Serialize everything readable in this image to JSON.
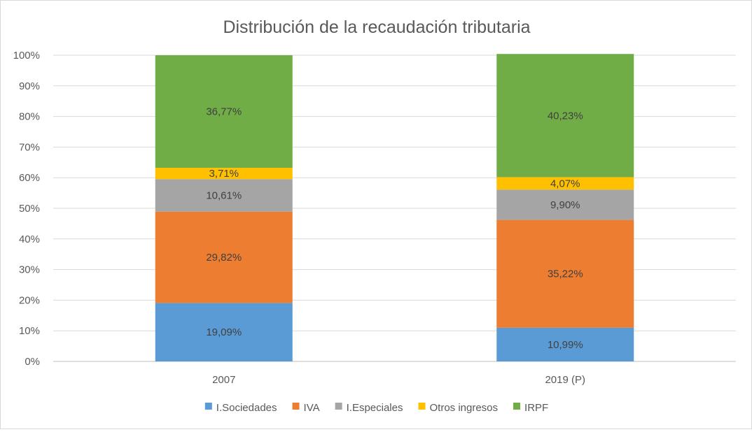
{
  "chart_data": {
    "type": "bar",
    "stacked": true,
    "title": "Distribución de la recaudación tributaria",
    "xlabel": "",
    "ylabel": "",
    "categories": [
      "2007",
      "2019 (P)"
    ],
    "ylim": [
      0,
      100
    ],
    "yticks": [
      "0%",
      "10%",
      "20%",
      "30%",
      "40%",
      "50%",
      "60%",
      "70%",
      "80%",
      "90%",
      "100%"
    ],
    "grid": true,
    "legend_position": "bottom",
    "series": [
      {
        "name": "I.Sociedades",
        "color": "#5b9bd5",
        "values": [
          19.09,
          10.99
        ],
        "labels": [
          "19,09%",
          "10,99%"
        ]
      },
      {
        "name": "IVA",
        "color": "#ed7d31",
        "values": [
          29.82,
          35.22
        ],
        "labels": [
          "29,82%",
          "35,22%"
        ]
      },
      {
        "name": "I.Especiales",
        "color": "#a5a5a5",
        "values": [
          10.61,
          9.9
        ],
        "labels": [
          "10,61%",
          "9,90%"
        ]
      },
      {
        "name": "Otros ingresos",
        "color": "#ffc000",
        "values": [
          3.71,
          4.07
        ],
        "labels": [
          "3,71%",
          "4,07%"
        ]
      },
      {
        "name": "IRPF",
        "color": "#70ad47",
        "values": [
          36.77,
          40.23
        ],
        "labels": [
          "36,77%",
          "40,23%"
        ]
      }
    ]
  }
}
